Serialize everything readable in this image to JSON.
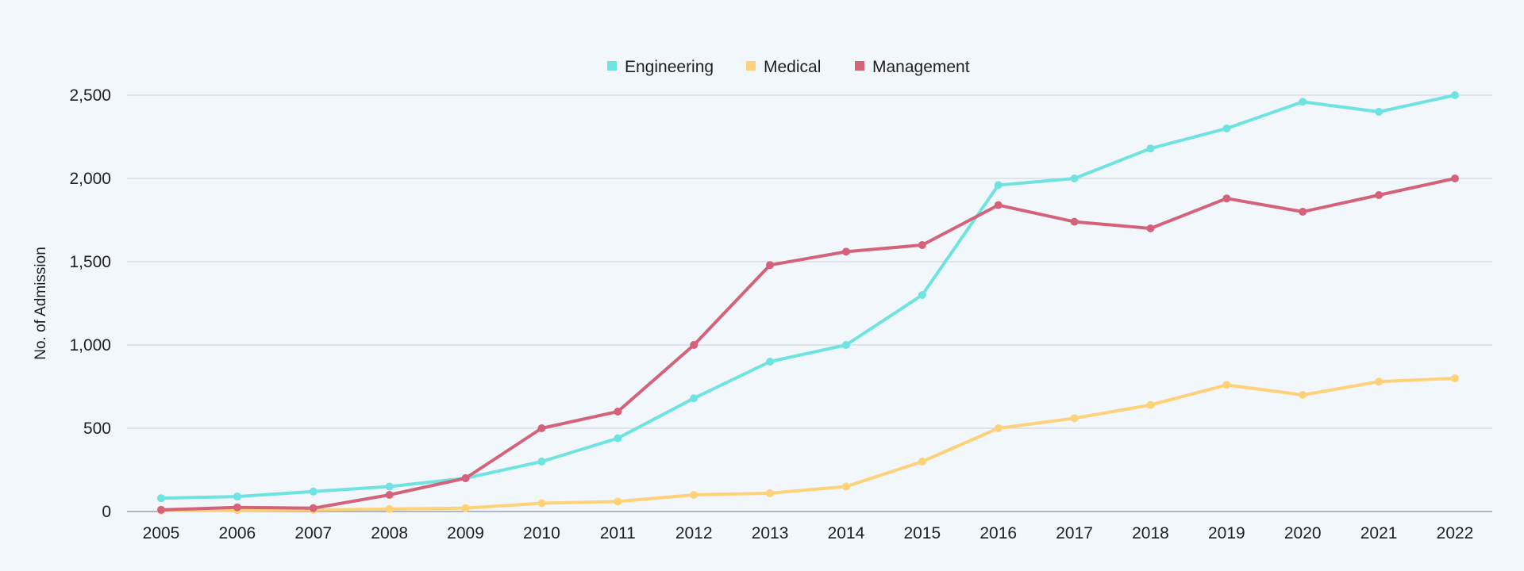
{
  "chart_data": {
    "type": "line",
    "title": "",
    "xlabel": "",
    "ylabel": "No. of Admission",
    "ylim": [
      0,
      2500
    ],
    "yticks": [
      0,
      500,
      1000,
      1500,
      2000,
      2500
    ],
    "ytick_labels": [
      "0",
      "500",
      "1,000",
      "1,500",
      "2,000",
      "2,500"
    ],
    "grid": true,
    "legend_position": "top-center",
    "categories": [
      "2005",
      "2006",
      "2007",
      "2008",
      "2009",
      "2010",
      "2011",
      "2012",
      "2013",
      "2014",
      "2015",
      "2016",
      "2017",
      "2018",
      "2019",
      "2020",
      "2021",
      "2022"
    ],
    "series": [
      {
        "name": "Engineering",
        "color": "#6fe3e1",
        "values": [
          80,
          90,
          120,
          150,
          200,
          300,
          440,
          680,
          900,
          1000,
          1300,
          1960,
          2000,
          2180,
          2300,
          2460,
          2400,
          2500
        ]
      },
      {
        "name": "Medical",
        "color": "#ffd27a",
        "values": [
          5,
          8,
          10,
          15,
          20,
          50,
          60,
          100,
          110,
          150,
          300,
          500,
          560,
          640,
          760,
          700,
          780,
          800
        ]
      },
      {
        "name": "Management",
        "color": "#d5627b",
        "values": [
          10,
          25,
          20,
          100,
          200,
          500,
          600,
          1000,
          1480,
          1560,
          1600,
          1840,
          1740,
          1700,
          1880,
          1800,
          1900,
          2000
        ]
      }
    ]
  }
}
